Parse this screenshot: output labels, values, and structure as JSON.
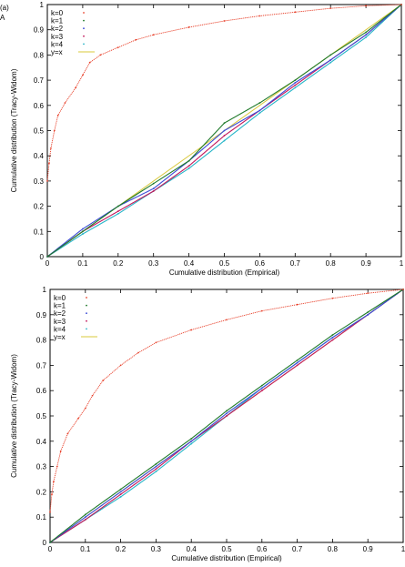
{
  "figure": {
    "label_a": "(a)",
    "label_A": "A"
  },
  "chart_data": [
    {
      "type": "line",
      "title": "",
      "xlabel": "Cumulative distribution (Empirical)",
      "ylabel": "Cumulative distribution (Tracy-Widom)",
      "xlim": [
        0,
        1
      ],
      "ylim": [
        0,
        1
      ],
      "xticks": [
        "0",
        "0.1",
        "0.2",
        "0.3",
        "0.4",
        "0.5",
        "0.6",
        "0.7",
        "0.8",
        "0.9",
        "1"
      ],
      "yticks": [
        "0",
        "0.1",
        "0.2",
        "0.3",
        "0.4",
        "0.5",
        "0.6",
        "0.7",
        "0.8",
        "0.9",
        "1"
      ],
      "grid": false,
      "legend_position": "top-left",
      "series": [
        {
          "name": "k=0",
          "color": "#e8412b",
          "style": "points",
          "x": [
            0,
            0.005,
            0.01,
            0.02,
            0.03,
            0.05,
            0.08,
            0.1,
            0.12,
            0.15,
            0.2,
            0.25,
            0.3,
            0.4,
            0.5,
            0.6,
            0.7,
            0.8,
            0.9,
            1.0
          ],
          "y": [
            0.3,
            0.37,
            0.43,
            0.5,
            0.56,
            0.61,
            0.67,
            0.72,
            0.77,
            0.8,
            0.83,
            0.86,
            0.88,
            0.91,
            0.935,
            0.955,
            0.97,
            0.985,
            0.995,
            1.0
          ]
        },
        {
          "name": "k=1",
          "color": "#1f7a2a",
          "style": "points",
          "x": [
            0,
            0.1,
            0.2,
            0.3,
            0.4,
            0.5,
            0.6,
            0.7,
            0.8,
            0.9,
            1.0
          ],
          "y": [
            0,
            0.1,
            0.2,
            0.29,
            0.38,
            0.53,
            0.61,
            0.7,
            0.8,
            0.89,
            1.0
          ]
        },
        {
          "name": "k=2",
          "color": "#3a4bd6",
          "style": "points",
          "x": [
            0,
            0.1,
            0.2,
            0.3,
            0.4,
            0.5,
            0.6,
            0.7,
            0.8,
            0.9,
            1.0
          ],
          "y": [
            0,
            0.11,
            0.2,
            0.27,
            0.38,
            0.5,
            0.58,
            0.69,
            0.78,
            0.88,
            1.0
          ]
        },
        {
          "name": "k=3",
          "color": "#c2185b",
          "style": "points",
          "x": [
            0,
            0.1,
            0.2,
            0.3,
            0.4,
            0.5,
            0.6,
            0.7,
            0.8,
            0.9,
            1.0
          ],
          "y": [
            0,
            0.1,
            0.18,
            0.26,
            0.36,
            0.48,
            0.58,
            0.68,
            0.78,
            0.88,
            1.0
          ]
        },
        {
          "name": "k=4",
          "color": "#26b5c8",
          "style": "points",
          "x": [
            0,
            0.1,
            0.2,
            0.3,
            0.4,
            0.5,
            0.6,
            0.7,
            0.8,
            0.9,
            1.0
          ],
          "y": [
            0,
            0.09,
            0.17,
            0.26,
            0.35,
            0.46,
            0.57,
            0.67,
            0.77,
            0.87,
            1.0
          ]
        },
        {
          "name": "y=x",
          "color": "#d9c83b",
          "style": "line",
          "x": [
            0,
            1
          ],
          "y": [
            0,
            1
          ]
        }
      ]
    },
    {
      "type": "line",
      "title": "",
      "xlabel": "Cumulative distribution (Empirical)",
      "ylabel": "Cumulative distribution (Tracy-Widom)",
      "xlim": [
        0,
        1
      ],
      "ylim": [
        0,
        1
      ],
      "xticks": [
        "0",
        "0.1",
        "0.2",
        "0.3",
        "0.4",
        "0.5",
        "0.6",
        "0.7",
        "0.8",
        "0.9",
        "1"
      ],
      "yticks": [
        "0",
        "0.1",
        "0.2",
        "0.3",
        "0.4",
        "0.5",
        "0.6",
        "0.7",
        "0.8",
        "0.9",
        "1"
      ],
      "grid": false,
      "legend_position": "top-left",
      "series": [
        {
          "name": "k=0",
          "color": "#e8412b",
          "style": "points",
          "x": [
            0,
            0.005,
            0.01,
            0.02,
            0.03,
            0.05,
            0.08,
            0.1,
            0.12,
            0.15,
            0.2,
            0.25,
            0.3,
            0.4,
            0.5,
            0.6,
            0.7,
            0.8,
            0.9,
            1.0
          ],
          "y": [
            0.12,
            0.19,
            0.24,
            0.3,
            0.36,
            0.43,
            0.49,
            0.53,
            0.58,
            0.64,
            0.7,
            0.75,
            0.79,
            0.84,
            0.88,
            0.915,
            0.94,
            0.965,
            0.985,
            1.0
          ]
        },
        {
          "name": "k=1",
          "color": "#1f7a2a",
          "style": "points",
          "x": [
            0,
            0.1,
            0.2,
            0.3,
            0.4,
            0.5,
            0.6,
            0.7,
            0.8,
            0.9,
            1.0
          ],
          "y": [
            0,
            0.11,
            0.21,
            0.31,
            0.41,
            0.52,
            0.62,
            0.72,
            0.82,
            0.91,
            1.0
          ]
        },
        {
          "name": "k=2",
          "color": "#3a4bd6",
          "style": "points",
          "x": [
            0,
            0.1,
            0.2,
            0.3,
            0.4,
            0.5,
            0.6,
            0.7,
            0.8,
            0.9,
            1.0
          ],
          "y": [
            0,
            0.1,
            0.2,
            0.3,
            0.4,
            0.51,
            0.61,
            0.71,
            0.81,
            0.9,
            1.0
          ]
        },
        {
          "name": "k=3",
          "color": "#c2185b",
          "style": "points",
          "x": [
            0,
            0.1,
            0.2,
            0.3,
            0.4,
            0.5,
            0.6,
            0.7,
            0.8,
            0.9,
            1.0
          ],
          "y": [
            0,
            0.09,
            0.19,
            0.29,
            0.4,
            0.5,
            0.6,
            0.7,
            0.8,
            0.9,
            1.0
          ]
        },
        {
          "name": "k=4",
          "color": "#26b5c8",
          "style": "points",
          "x": [
            0,
            0.1,
            0.2,
            0.3,
            0.4,
            0.5,
            0.6,
            0.7,
            0.8,
            0.9,
            1.0
          ],
          "y": [
            0,
            0.09,
            0.18,
            0.28,
            0.39,
            0.5,
            0.61,
            0.71,
            0.81,
            0.9,
            1.0
          ]
        },
        {
          "name": "y=x",
          "color": "#d9c83b",
          "style": "line",
          "x": [
            0,
            1
          ],
          "y": [
            0,
            1
          ]
        }
      ]
    }
  ]
}
